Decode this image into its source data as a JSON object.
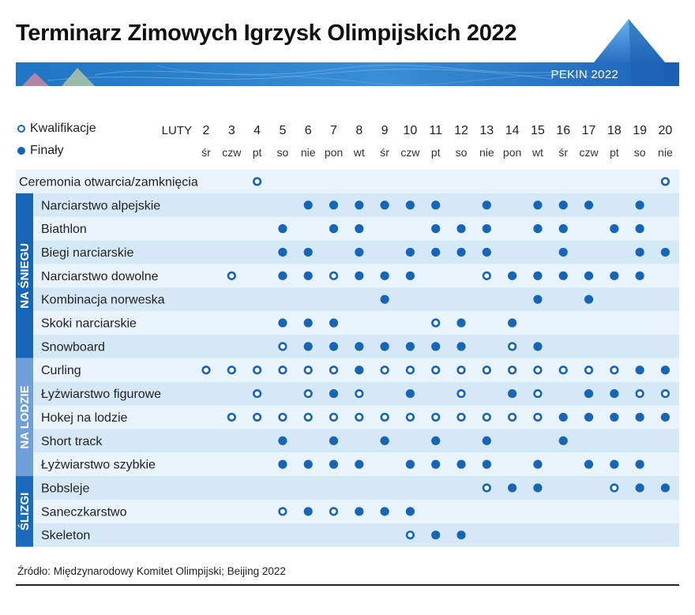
{
  "title": "Terminarz Zimowych Igrzysk Olimpijskich 2022",
  "city": "PEKIN 2022",
  "legend": {
    "qualification": "Kwalifikacje",
    "final": "Finały"
  },
  "source": "Źródło: Międzynarodowy Komitet Olimpijski; Beijing 2022",
  "colors": {
    "accent": "#1565b8",
    "row_light": "#e9f3fb",
    "row_dark": "#d5e8f6",
    "group_snow": "#1565b8",
    "group_ice": "#6e9fd8",
    "group_sled": "#1a6bbd"
  },
  "chart_data": {
    "type": "table",
    "month_label": "LUTY",
    "days": [
      "2",
      "3",
      "4",
      "5",
      "6",
      "7",
      "8",
      "9",
      "10",
      "11",
      "12",
      "13",
      "14",
      "15",
      "16",
      "17",
      "18",
      "19",
      "20"
    ],
    "weekdays": [
      "śr",
      "czw",
      "pt",
      "so",
      "nie",
      "pon",
      "wt",
      "śr",
      "czw",
      "pt",
      "so",
      "nie",
      "pon",
      "wt",
      "śr",
      "czw",
      "pt",
      "so",
      "nie"
    ],
    "groups": [
      {
        "name": "",
        "rows": [
          {
            "label": "Ceremonia otwarcia/zamknięcia",
            "events": [
              "",
              "",
              "Q",
              "",
              "",
              "",
              "",
              "",
              "",
              "",
              "",
              "",
              "",
              "",
              "",
              "",
              "",
              "",
              "Q"
            ]
          }
        ]
      },
      {
        "name": "NA ŚNIEGU",
        "rows": [
          {
            "label": "Narciarstwo alpejskie",
            "events": [
              "",
              "",
              "",
              "",
              "F",
              "F",
              "F",
              "F",
              "F",
              "F",
              "",
              "F",
              "",
              "F",
              "F",
              "F",
              "",
              "F",
              ""
            ]
          },
          {
            "label": "Biathlon",
            "events": [
              "",
              "",
              "",
              "F",
              "",
              "F",
              "F",
              "",
              "",
              "F",
              "F",
              "F",
              "",
              "F",
              "F",
              "",
              "F",
              "F",
              ""
            ]
          },
          {
            "label": "Biegi narciarskie",
            "events": [
              "",
              "",
              "",
              "F",
              "F",
              "",
              "F",
              "",
              "F",
              "F",
              "F",
              "F",
              "",
              "",
              "F",
              "",
              "",
              "F",
              "F"
            ]
          },
          {
            "label": "Narciarstwo dowolne",
            "events": [
              "",
              "Q",
              "",
              "F",
              "F",
              "Q",
              "F",
              "F",
              "F",
              "",
              "",
              "Q",
              "F",
              "F",
              "F",
              "F",
              "F",
              "F",
              ""
            ]
          },
          {
            "label": "Kombinacja norweska",
            "events": [
              "",
              "",
              "",
              "",
              "",
              "",
              "",
              "F",
              "",
              "",
              "",
              "",
              "",
              "F",
              "",
              "F",
              "",
              "",
              ""
            ]
          },
          {
            "label": "Skoki narciarskie",
            "events": [
              "",
              "",
              "",
              "F",
              "F",
              "F",
              "",
              "",
              "",
              "Q",
              "F",
              "",
              "F",
              "",
              "",
              "",
              "",
              "",
              ""
            ]
          },
          {
            "label": "Snowboard",
            "events": [
              "",
              "",
              "",
              "Q",
              "F",
              "F",
              "F",
              "F",
              "F",
              "F",
              "F",
              "",
              "Q",
              "F",
              "",
              "",
              "",
              "",
              ""
            ]
          }
        ]
      },
      {
        "name": "NA LODZIE",
        "rows": [
          {
            "label": "Curling",
            "events": [
              "Q",
              "Q",
              "Q",
              "Q",
              "Q",
              "Q",
              "F",
              "Q",
              "Q",
              "Q",
              "Q",
              "Q",
              "Q",
              "Q",
              "Q",
              "Q",
              "Q",
              "F",
              "F"
            ]
          },
          {
            "label": "Łyżwiarstwo figurowe",
            "events": [
              "",
              "",
              "Q",
              "",
              "Q",
              "F",
              "Q",
              "",
              "F",
              "",
              "Q",
              "",
              "F",
              "Q",
              "",
              "F",
              "F",
              "Q",
              "Q"
            ]
          },
          {
            "label": "Hokej na lodzie",
            "events": [
              "",
              "Q",
              "Q",
              "Q",
              "Q",
              "Q",
              "Q",
              "Q",
              "Q",
              "Q",
              "Q",
              "Q",
              "Q",
              "Q",
              "F",
              "F",
              "F",
              "F",
              "F"
            ]
          },
          {
            "label": "Short track",
            "events": [
              "",
              "",
              "",
              "F",
              "",
              "F",
              "",
              "F",
              "",
              "F",
              "",
              "F",
              "",
              "",
              "F",
              "",
              "",
              "",
              ""
            ]
          },
          {
            "label": "Łyżwiarstwo szybkie",
            "events": [
              "",
              "",
              "",
              "F",
              "F",
              "F",
              "F",
              "",
              "F",
              "F",
              "F",
              "F",
              "",
              "F",
              "",
              "F",
              "F",
              "F",
              ""
            ]
          }
        ]
      },
      {
        "name": "ŚLIZGI",
        "rows": [
          {
            "label": "Bobsleje",
            "events": [
              "",
              "",
              "",
              "",
              "",
              "",
              "",
              "",
              "",
              "",
              "",
              "Q",
              "F",
              "F",
              "",
              "",
              "Q",
              "F",
              "F"
            ]
          },
          {
            "label": "Saneczkarstwo",
            "events": [
              "",
              "",
              "",
              "Q",
              "F",
              "Q",
              "F",
              "F",
              "F",
              "",
              "",
              "",
              "",
              "",
              "",
              "",
              "",
              "",
              ""
            ]
          },
          {
            "label": "Skeleton",
            "events": [
              "",
              "",
              "",
              "",
              "",
              "",
              "",
              "",
              "Q",
              "F",
              "F",
              "",
              "",
              "",
              "",
              "",
              "",
              "",
              ""
            ]
          }
        ]
      }
    ]
  }
}
